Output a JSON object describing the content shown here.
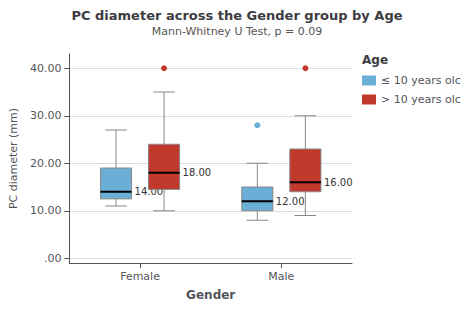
{
  "chart_data": {
    "type": "boxplot",
    "title": "PC diameter across the Gender group by Age",
    "subtitle": "Mann-Whitney U Test, p = 0.09",
    "xlabel": "Gender",
    "ylabel": "PC diameter (mm)",
    "legend_title": "Age",
    "legend": "upper right",
    "categories": [
      "Female",
      "Male"
    ],
    "series": [
      {
        "name": "≤ 10 years olc",
        "color": "#6baed6",
        "median": [
          14,
          12
        ],
        "q1": [
          12.5,
          10.0
        ],
        "q3": [
          19.0,
          15.0
        ],
        "whisker_low": [
          11.0,
          8.0
        ],
        "whisker_high": [
          27.0,
          20.0
        ],
        "fliers": [
          [],
          [
            28
          ]
        ],
        "value_labels": [
          "14.00",
          "12.00"
        ]
      },
      {
        "name": "> 10 years olc",
        "color": "#c0392b",
        "median": [
          18,
          16
        ],
        "q1": [
          14.5,
          14.0
        ],
        "q3": [
          24.0,
          23.0
        ],
        "whisker_low": [
          10.0,
          9.0
        ],
        "whisker_high": [
          35.0,
          30.0
        ],
        "fliers": [
          [
            40
          ],
          [
            40
          ]
        ],
        "value_labels": [
          "18.00",
          "16.00"
        ]
      }
    ],
    "data_labels": true,
    "ylim": [
      -1,
      43
    ],
    "yticks": [
      {
        "value": 0,
        "label": ".00"
      },
      {
        "value": 10,
        "label": "10.00"
      },
      {
        "value": 20,
        "label": "20.00"
      },
      {
        "value": 30,
        "label": "30.00"
      },
      {
        "value": 40,
        "label": "40.00"
      }
    ],
    "grid": true
  }
}
